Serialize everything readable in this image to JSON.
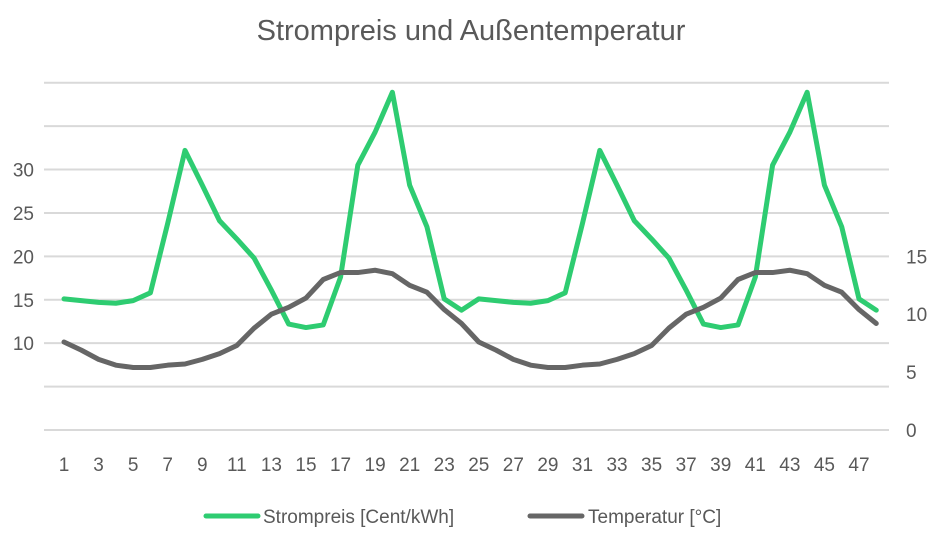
{
  "chart_data": {
    "type": "line",
    "title": "Strompreis und Außentemperatur",
    "x": [
      1,
      2,
      3,
      4,
      5,
      6,
      7,
      8,
      9,
      10,
      11,
      12,
      13,
      14,
      15,
      16,
      17,
      18,
      19,
      20,
      21,
      22,
      23,
      24,
      25,
      26,
      27,
      28,
      29,
      30,
      31,
      32,
      33,
      34,
      35,
      36,
      37,
      38,
      39,
      40,
      41,
      42,
      43,
      44,
      45,
      46,
      47,
      48
    ],
    "x_tick_labels": [
      "1",
      "3",
      "5",
      "7",
      "9",
      "11",
      "13",
      "15",
      "17",
      "19",
      "21",
      "23",
      "25",
      "27",
      "29",
      "31",
      "33",
      "35",
      "37",
      "39",
      "41",
      "43",
      "45",
      "47"
    ],
    "y_left": {
      "ylim": [
        0,
        40
      ],
      "tick_labels": [
        "10",
        "15",
        "20",
        "25",
        "30"
      ]
    },
    "y_right": {
      "ylim": [
        0,
        30
      ],
      "tick_labels": [
        "0",
        "5",
        "10",
        "15"
      ]
    },
    "grid": true,
    "legend_position": "bottom",
    "series": [
      {
        "name": "Strompreis [Cent/kWh]",
        "axis": "left",
        "color": "#2ECC71",
        "values": [
          15.1,
          14.9,
          14.7,
          14.6,
          14.9,
          15.8,
          23.8,
          32.2,
          28.2,
          24.1,
          22.0,
          19.8,
          16.1,
          12.2,
          11.8,
          12.1,
          17.6,
          30.5,
          34.3,
          38.9,
          28.2,
          23.4,
          15.1,
          13.8,
          15.1,
          14.9,
          14.7,
          14.6,
          14.9,
          15.8,
          23.8,
          32.2,
          28.2,
          24.1,
          22.0,
          19.8,
          16.1,
          12.2,
          11.8,
          12.1,
          17.6,
          30.5,
          34.3,
          38.9,
          28.2,
          23.4,
          15.1,
          13.8
        ]
      },
      {
        "name": "Temperatur [°C]",
        "axis": "right",
        "color": "#666666",
        "values": [
          7.6,
          6.9,
          6.1,
          5.6,
          5.4,
          5.4,
          5.6,
          5.7,
          6.1,
          6.6,
          7.3,
          8.8,
          10.0,
          10.6,
          11.4,
          13.0,
          13.6,
          13.6,
          13.8,
          13.5,
          12.5,
          11.9,
          10.4,
          9.2,
          7.6,
          6.9,
          6.1,
          5.6,
          5.4,
          5.4,
          5.6,
          5.7,
          6.1,
          6.6,
          7.3,
          8.8,
          10.0,
          10.6,
          11.4,
          13.0,
          13.6,
          13.6,
          13.8,
          13.5,
          12.5,
          11.9,
          10.4,
          9.2
        ]
      }
    ]
  }
}
